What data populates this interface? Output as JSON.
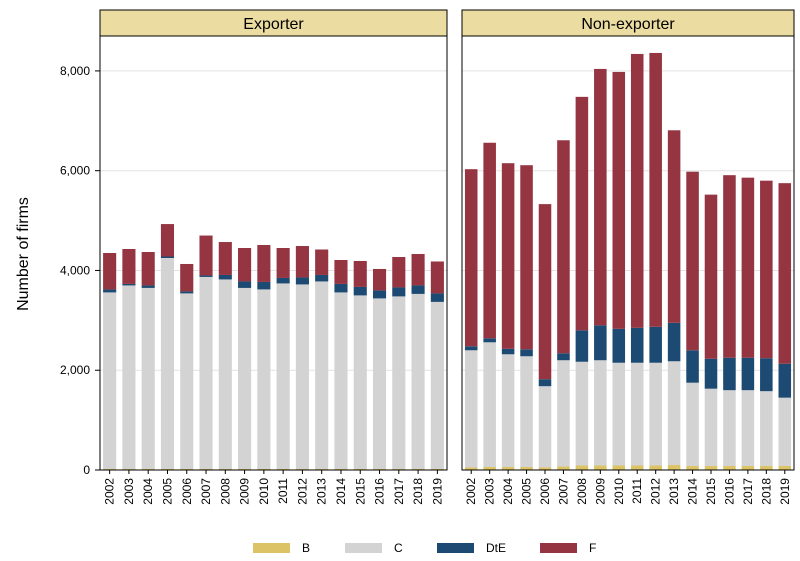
{
  "chart_data": {
    "type": "stacked-bar",
    "y_label": "Number of firms",
    "facets": [
      "Exporter",
      "Non-exporter"
    ],
    "categories": [
      "2002",
      "2003",
      "2004",
      "2005",
      "2006",
      "2007",
      "2008",
      "2009",
      "2010",
      "2011",
      "2012",
      "2013",
      "2014",
      "2015",
      "2016",
      "2017",
      "2018",
      "2019"
    ],
    "ylim": [
      0,
      8700
    ],
    "yticks": [
      0,
      {
        "value": 2000,
        "label": "2,000"
      },
      {
        "value": 4000,
        "label": "4,000"
      },
      {
        "value": 6000,
        "label": "6,000"
      },
      {
        "value": 8000,
        "label": "8,000"
      }
    ],
    "grid": true,
    "legend": "bottom",
    "series": [
      {
        "name": "B",
        "color": "#dcc466",
        "values": [
          [
            20,
            20,
            20,
            20,
            20,
            20,
            20,
            20,
            20,
            20,
            20,
            20,
            20,
            20,
            20,
            20,
            20,
            20
          ],
          [
            50,
            60,
            60,
            60,
            50,
            70,
            90,
            90,
            90,
            90,
            90,
            100,
            80,
            80,
            80,
            80,
            80,
            80
          ]
        ]
      },
      {
        "name": "C",
        "color": "#d3d3d3",
        "values": [
          [
            3540,
            3680,
            3630,
            4230,
            3520,
            3850,
            3800,
            3630,
            3600,
            3720,
            3700,
            3760,
            3540,
            3480,
            3420,
            3460,
            3510,
            3350
          ],
          [
            2350,
            2500,
            2260,
            2220,
            1630,
            2130,
            2080,
            2110,
            2060,
            2060,
            2060,
            2080,
            1670,
            1550,
            1520,
            1520,
            1500,
            1370
          ]
        ]
      },
      {
        "name": "DtE",
        "color": "#1c4a72",
        "values": [
          [
            60,
            30,
            50,
            30,
            40,
            30,
            90,
            130,
            150,
            110,
            140,
            130,
            170,
            170,
            160,
            180,
            170,
            170
          ],
          [
            80,
            80,
            110,
            140,
            140,
            140,
            630,
            700,
            680,
            700,
            720,
            770,
            650,
            600,
            650,
            650,
            660,
            680
          ]
        ]
      },
      {
        "name": "F",
        "color": "#943541",
        "values": [
          [
            730,
            700,
            670,
            650,
            550,
            800,
            660,
            670,
            740,
            600,
            630,
            510,
            480,
            520,
            430,
            610,
            630,
            640
          ],
          [
            3550,
            3920,
            3720,
            3690,
            3510,
            4270,
            4680,
            5140,
            5150,
            5490,
            5490,
            3860,
            3580,
            3290,
            3660,
            3610,
            3560,
            3620
          ]
        ]
      }
    ]
  }
}
